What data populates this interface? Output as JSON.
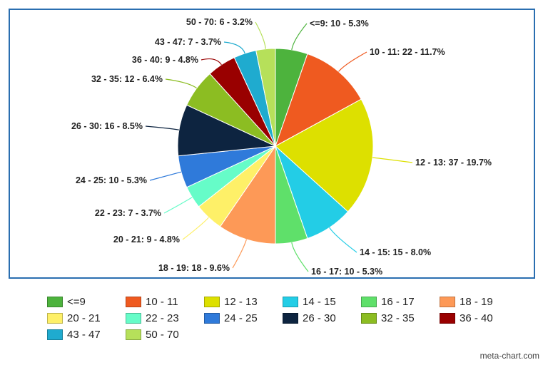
{
  "chart_data": {
    "type": "pie",
    "title": "",
    "legend_position": "bottom",
    "slices": [
      {
        "label": "<=9",
        "value": 10,
        "percent": "5.3%",
        "color": "#4db33d",
        "text": "<=9: 10 - 5.3%"
      },
      {
        "label": "10 - 11",
        "value": 22,
        "percent": "11.7%",
        "color": "#ef5a20",
        "text": "10 - 11: 22 - 11.7%"
      },
      {
        "label": "12 - 13",
        "value": 37,
        "percent": "19.7%",
        "color": "#dde000",
        "text": "12 - 13: 37 - 19.7%"
      },
      {
        "label": "14 - 15",
        "value": 15,
        "percent": "8.0%",
        "color": "#23cde6",
        "text": "14 - 15: 15 - 8.0%"
      },
      {
        "label": "16 - 17",
        "value": 10,
        "percent": "5.3%",
        "color": "#5fe06a",
        "text": "16 - 17: 10 - 5.3%"
      },
      {
        "label": "18 - 19",
        "value": 18,
        "percent": "9.6%",
        "color": "#fd9957",
        "text": "18 - 19: 18 - 9.6%"
      },
      {
        "label": "20 - 21",
        "value": 9,
        "percent": "4.8%",
        "color": "#fef068",
        "text": "20 - 21: 9 - 4.8%"
      },
      {
        "label": "22 - 23",
        "value": 7,
        "percent": "3.7%",
        "color": "#66fcc8",
        "text": "22 - 23: 7 - 3.7%"
      },
      {
        "label": "24 - 25",
        "value": 10,
        "percent": "5.3%",
        "color": "#2f7ada",
        "text": "24 - 25: 10 - 5.3%"
      },
      {
        "label": "26 - 30",
        "value": 16,
        "percent": "8.5%",
        "color": "#0d2440",
        "text": "26 - 30: 16 - 8.5%"
      },
      {
        "label": "32 - 35",
        "value": 12,
        "percent": "6.4%",
        "color": "#8cbd22",
        "text": "32 - 35: 12 - 6.4%"
      },
      {
        "label": "36 - 40",
        "value": 9,
        "percent": "4.8%",
        "color": "#990000",
        "text": "36 - 40: 9 - 4.8%"
      },
      {
        "label": "43 - 47",
        "value": 7,
        "percent": "3.7%",
        "color": "#1fabcf",
        "text": "43 - 47: 7 - 3.7%"
      },
      {
        "label": "50 - 70",
        "value": 6,
        "percent": "3.2%",
        "color": "#b6e05a",
        "text": "50 - 70: 6 - 3.2%"
      }
    ]
  },
  "watermark": "meta-chart.com"
}
